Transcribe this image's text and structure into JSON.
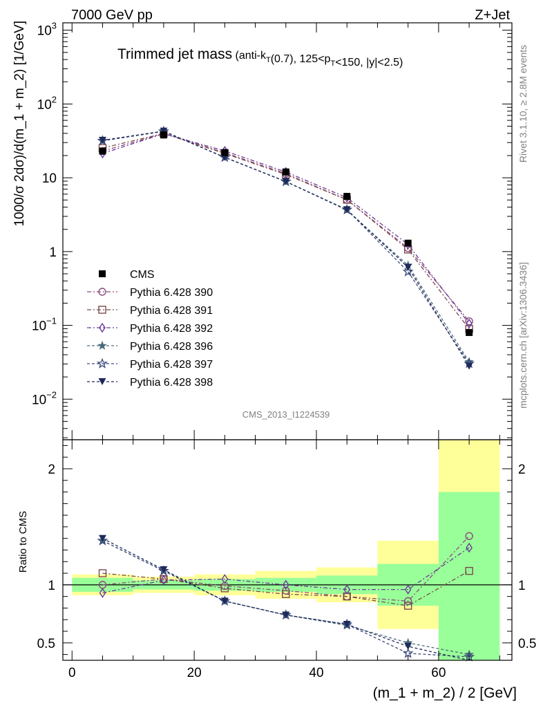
{
  "header": {
    "left": "7000 GeV pp",
    "right": "Z+Jet"
  },
  "side_labels": {
    "rivet": "Rivet 3.1.10, ≥ 2.8M events",
    "mcplots": "mcplots.cern.ch [arXiv:1306.3436]"
  },
  "chart_data": {
    "type": "line",
    "title_main": "Trimmed jet mass",
    "title_sub": "(anti-kT(0.7), 125<pT<150, |y|<2.5)",
    "watermark": "CMS_2013_I1224539",
    "xlabel": "(m_1 + m_2) / 2 [GeV]",
    "ylabel_main": "1000/σ 2dσ)/d(m_1 + m_2) [1/GeV]",
    "ylabel_ratio": "Ratio to CMS",
    "xlim": [
      -1.5,
      72
    ],
    "ylim_main_log10": [
      -2.55,
      3.1
    ],
    "ylim_ratio": [
      0.35,
      2.25
    ],
    "log_y_main": true,
    "x_ticks": [
      "0",
      "20",
      "40",
      "60"
    ],
    "y_ticks_main": [
      {
        "base": "10",
        "exp": "3",
        "v": 1000
      },
      {
        "base": "10",
        "exp": "2",
        "v": 100
      },
      {
        "base": "10",
        "exp": "",
        "v": 10
      },
      {
        "base": "1",
        "exp": "",
        "v": 1
      },
      {
        "base": "10",
        "exp": "−1",
        "v": 0.1
      },
      {
        "base": "10",
        "exp": "−2",
        "v": 0.01
      }
    ],
    "y_ticks_ratio": [
      {
        "label": "2",
        "v": 2
      },
      {
        "label": "1",
        "v": 1
      },
      {
        "label": "0.5",
        "v": 0.5
      }
    ],
    "x": [
      5,
      15,
      25,
      35,
      45,
      55,
      65
    ],
    "bin_edges": [
      0,
      10,
      20,
      30,
      40,
      50,
      60,
      70
    ],
    "data": {
      "name": "CMS",
      "values": [
        23,
        38,
        22,
        12,
        5.6,
        1.3,
        0.08
      ],
      "band_inner": [
        0.06,
        0.04,
        0.05,
        0.06,
        0.08,
        0.18,
        0.8
      ],
      "band_outer": [
        0.09,
        0.07,
        0.09,
        0.12,
        0.15,
        0.38,
        1.6
      ]
    },
    "series": [
      {
        "name": "Pythia 6.428 390",
        "color": "#8a4a7a",
        "marker": "circle-open",
        "ratio": [
          1.0,
          1.05,
          0.99,
          0.95,
          0.9,
          0.86,
          1.42
        ]
      },
      {
        "name": "Pythia 6.428 391",
        "color": "#7a4a4a",
        "marker": "square-open",
        "ratio": [
          1.1,
          1.05,
          0.97,
          0.92,
          0.9,
          0.82,
          1.12
        ]
      },
      {
        "name": "Pythia 6.428 392",
        "color": "#6a3a9a",
        "marker": "diamond-open",
        "ratio": [
          0.93,
          1.04,
          1.05,
          1.0,
          0.96,
          0.96,
          1.32
        ]
      },
      {
        "name": "Pythia 6.428 396",
        "color": "#4a6a7a",
        "marker": "star-filled",
        "ratio": [
          1.38,
          1.12,
          0.86,
          0.74,
          0.65,
          0.5,
          0.4
        ]
      },
      {
        "name": "Pythia 6.428 397",
        "color": "#3a4a7a",
        "marker": "star-open",
        "ratio": [
          1.38,
          1.12,
          0.86,
          0.74,
          0.66,
          0.41,
          0.38
        ]
      },
      {
        "name": "Pythia 6.428 398",
        "color": "#1e2a5a",
        "marker": "triangle-down-filled",
        "ratio": [
          1.4,
          1.13,
          0.86,
          0.74,
          0.66,
          0.47,
          0.35
        ]
      }
    ],
    "colors": {
      "band_inner": "#99ff99",
      "band_outer": "#ffff99"
    }
  }
}
